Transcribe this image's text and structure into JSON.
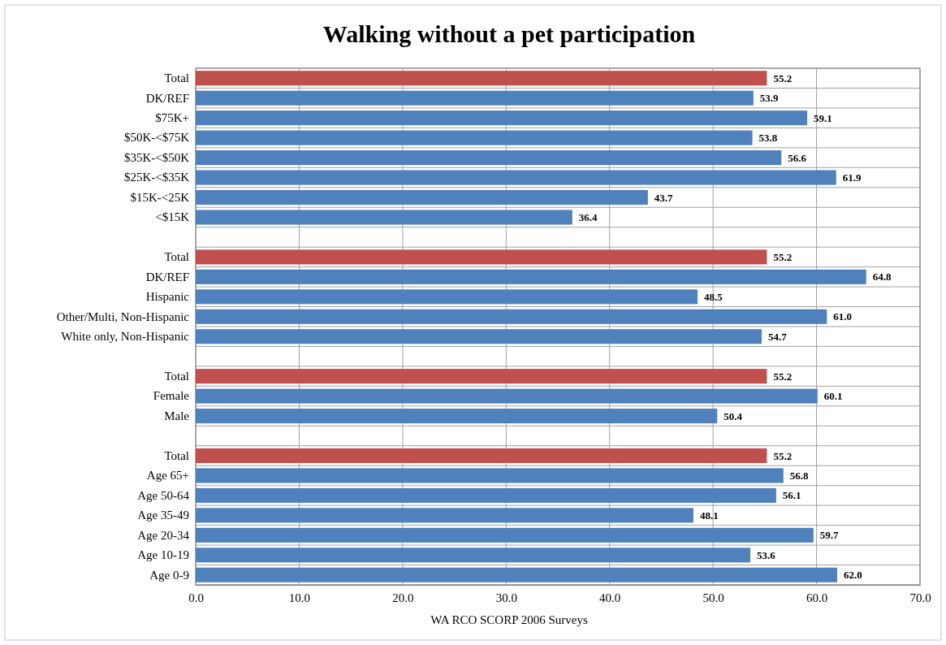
{
  "chart_data": {
    "type": "bar",
    "orientation": "horizontal",
    "title": "Walking without a pet participation",
    "xlabel": "WA RCO SCORP 2006 Surveys",
    "categories": [
      "Total",
      "DK/REF",
      "$75K+",
      "$50K-<$75K",
      "$35K-<$50K",
      "$25K-<$35K",
      "$15K-<25K",
      "<$15K",
      null,
      "Total",
      "DK/REF",
      "Hispanic",
      "Other/Multi, Non-Hispanic",
      "White only, Non-Hispanic",
      null,
      "Total",
      "Female",
      "Male",
      null,
      "Total",
      "Age 65+",
      "Age 50-64",
      "Age 35-49",
      "Age 20-34",
      "Age 10-19",
      "Age 0-9"
    ],
    "values": [
      55.2,
      53.9,
      59.1,
      53.8,
      56.6,
      61.9,
      43.7,
      36.4,
      null,
      55.2,
      64.8,
      48.5,
      61.0,
      54.7,
      null,
      55.2,
      60.1,
      50.4,
      null,
      55.2,
      56.8,
      56.1,
      48.1,
      59.7,
      53.6,
      62.0
    ],
    "value_labels": [
      "55.2",
      "53.9",
      "59.1",
      "53.8",
      "56.6",
      "61.9",
      "43.7",
      "36.4",
      null,
      "55.2",
      "64.8",
      "48.5",
      "61.0",
      "54.7",
      null,
      "55.2",
      "60.1",
      "50.4",
      null,
      "55.2",
      "56.8",
      "56.1",
      "48.1",
      "59.7",
      "53.6",
      "62.0"
    ],
    "colors": [
      "#c0504d",
      "#4f81bd",
      "#4f81bd",
      "#4f81bd",
      "#4f81bd",
      "#4f81bd",
      "#4f81bd",
      "#4f81bd",
      null,
      "#c0504d",
      "#4f81bd",
      "#4f81bd",
      "#4f81bd",
      "#4f81bd",
      null,
      "#c0504d",
      "#4f81bd",
      "#4f81bd",
      null,
      "#c0504d",
      "#4f81bd",
      "#4f81bd",
      "#4f81bd",
      "#4f81bd",
      "#4f81bd",
      "#4f81bd"
    ],
    "xlim": [
      0,
      70
    ],
    "xticks": [
      {
        "value": 0,
        "label": "0.0"
      },
      {
        "value": 10,
        "label": "10.0"
      },
      {
        "value": 20,
        "label": "20.0"
      },
      {
        "value": 30,
        "label": "30.0"
      },
      {
        "value": 40,
        "label": "40.0"
      },
      {
        "value": 50,
        "label": "50.0"
      },
      {
        "value": 60,
        "label": "60.0"
      },
      {
        "value": 70,
        "label": "70.0"
      }
    ],
    "grid": true
  }
}
